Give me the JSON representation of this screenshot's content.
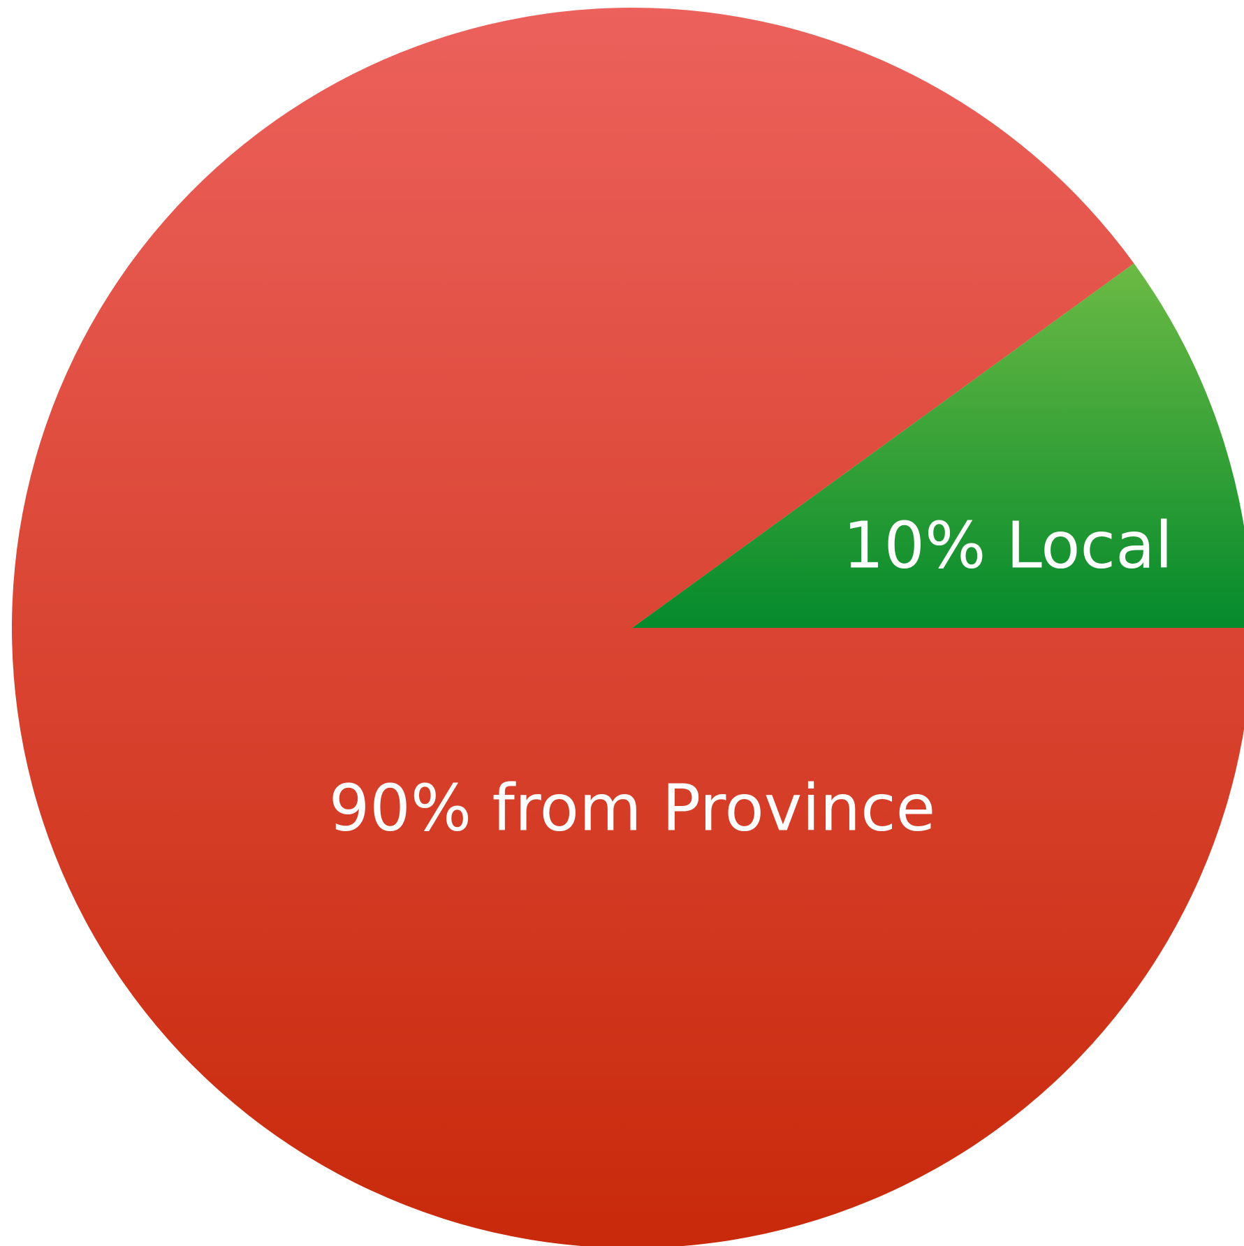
{
  "chart_data": {
    "type": "pie",
    "values": [
      10,
      90
    ],
    "value_labels": [
      "10% Local",
      "90% from Province"
    ],
    "colors": [
      [
        "#6cba44",
        "#048a2c"
      ],
      [
        "#ec615c",
        "#c8290a"
      ]
    ]
  }
}
